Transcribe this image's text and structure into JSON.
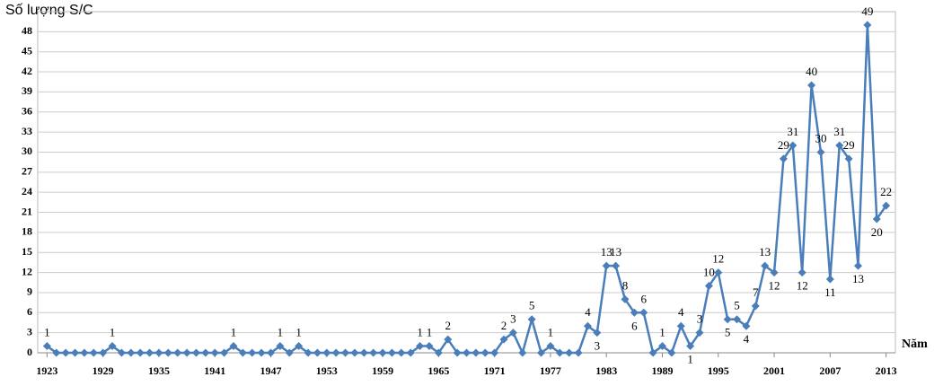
{
  "chart_data": {
    "type": "line",
    "y_axis_label": "Số lượng S/C",
    "x_axis_label": "Năm",
    "x": [
      1923,
      1924,
      1925,
      1926,
      1927,
      1928,
      1929,
      1930,
      1931,
      1932,
      1933,
      1934,
      1935,
      1936,
      1937,
      1938,
      1939,
      1940,
      1941,
      1942,
      1943,
      1944,
      1945,
      1946,
      1947,
      1948,
      1949,
      1950,
      1951,
      1952,
      1953,
      1954,
      1955,
      1956,
      1957,
      1958,
      1959,
      1960,
      1961,
      1962,
      1963,
      1964,
      1965,
      1966,
      1967,
      1968,
      1969,
      1970,
      1971,
      1972,
      1973,
      1974,
      1975,
      1976,
      1977,
      1978,
      1979,
      1980,
      1981,
      1982,
      1983,
      1984,
      1985,
      1986,
      1987,
      1988,
      1989,
      1990,
      1991,
      1992,
      1993,
      1994,
      1995,
      1996,
      1997,
      1998,
      1999,
      2000,
      2001,
      2002,
      2003,
      2004,
      2005,
      2006,
      2007,
      2008,
      2009,
      2010,
      2011,
      2012,
      2013
    ],
    "values": [
      1,
      0,
      0,
      0,
      0,
      0,
      0,
      1,
      0,
      0,
      0,
      0,
      0,
      0,
      0,
      0,
      0,
      0,
      0,
      0,
      1,
      0,
      0,
      0,
      0,
      1,
      0,
      1,
      0,
      0,
      0,
      0,
      0,
      0,
      0,
      0,
      0,
      0,
      0,
      0,
      1,
      1,
      0,
      2,
      0,
      0,
      0,
      0,
      0,
      2,
      3,
      0,
      5,
      0,
      1,
      0,
      0,
      0,
      4,
      3,
      13,
      13,
      8,
      6,
      6,
      0,
      1,
      0,
      4,
      1,
      3,
      10,
      12,
      5,
      5,
      4,
      7,
      13,
      12,
      29,
      31,
      12,
      40,
      30,
      11,
      31,
      29,
      13,
      49,
      20,
      22
    ],
    "color": "#4a7ebb",
    "xlim": [
      1922,
      2014
    ],
    "xticks": [
      1923,
      1929,
      1935,
      1941,
      1947,
      1953,
      1959,
      1965,
      1971,
      1977,
      1983,
      1989,
      1995,
      2001,
      2007,
      2013
    ],
    "ylim": [
      0,
      51
    ],
    "yticks": [
      0,
      3,
      6,
      9,
      12,
      15,
      18,
      21,
      24,
      27,
      30,
      33,
      36,
      39,
      42,
      45,
      48
    ],
    "grid": true
  }
}
